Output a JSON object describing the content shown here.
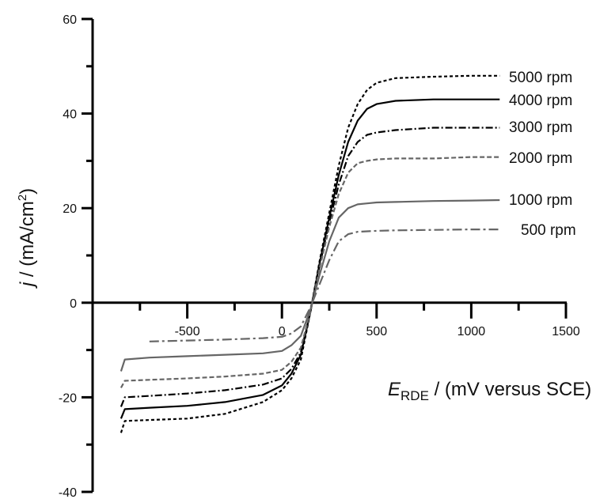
{
  "chart_data": {
    "type": "line",
    "title": "",
    "xlabel": {
      "main": "E",
      "sub": "RDE",
      "rest": " / (mV versus SCE)"
    },
    "ylabel": {
      "main": "j",
      "rest": " / (mA/cm",
      "sup": "2",
      "end": ")"
    },
    "xlim": [
      -1000,
      1500
    ],
    "ylim": [
      -40,
      60
    ],
    "xticks": [
      -500,
      0,
      500,
      1000,
      1500
    ],
    "xtick_labels": [
      "-500",
      "0",
      "500",
      "1000",
      "1500"
    ],
    "yticks": [
      -40,
      -20,
      0,
      20,
      40,
      60
    ],
    "ytick_labels": [
      "-40",
      "-20",
      "0",
      "20",
      "40",
      "60"
    ],
    "grid": false,
    "legend": "inline labels at right end of each curve",
    "x": [
      -850,
      -830,
      -700,
      -500,
      -300,
      -100,
      0,
      50,
      100,
      150,
      200,
      250,
      300,
      350,
      400,
      450,
      500,
      600,
      800,
      1000,
      1150
    ],
    "series": [
      {
        "name": "5000 rpm",
        "color": "#000000",
        "style": "dotted",
        "values": [
          -27.5,
          -25,
          -24.8,
          -24.5,
          -23.5,
          -21,
          -18.5,
          -16,
          -12,
          -2,
          9,
          19,
          29,
          37,
          42,
          45,
          46.5,
          47.5,
          47.8,
          48,
          48
        ]
      },
      {
        "name": "4000 rpm",
        "color": "#000000",
        "style": "solid",
        "values": [
          -24.5,
          -22.5,
          -22.2,
          -21.8,
          -21,
          -19.5,
          -17.5,
          -15,
          -11,
          -2,
          8.5,
          18,
          27,
          34,
          38.5,
          41,
          42,
          42.7,
          43,
          43,
          43
        ]
      },
      {
        "name": "3000 rpm",
        "color": "#000000",
        "style": "dash-dot",
        "values": [
          -22,
          -20,
          -19.7,
          -19.2,
          -18.5,
          -17.3,
          -16,
          -14,
          -10.5,
          -2,
          8,
          17,
          25,
          31,
          34,
          35.5,
          36,
          36.5,
          37,
          37,
          37
        ]
      },
      {
        "name": "2000 rpm",
        "color": "#666666",
        "style": "dashed",
        "values": [
          -18,
          -16.5,
          -16.3,
          -16,
          -15.6,
          -15,
          -14.2,
          -12.5,
          -9.5,
          -2,
          7.5,
          16,
          23,
          27.5,
          29.5,
          30,
          30.3,
          30.5,
          30.5,
          30.8,
          30.8
        ]
      },
      {
        "name": "1000 rpm",
        "color": "#666666",
        "style": "solid",
        "values": [
          -14.5,
          -12,
          -11.6,
          -11.3,
          -11,
          -10.7,
          -10.2,
          -9,
          -7,
          -1.5,
          6,
          13,
          18,
          20,
          20.8,
          21,
          21.2,
          21.3,
          21.5,
          21.6,
          21.7
        ]
      },
      {
        "name": "500 rpm",
        "color": "#666666",
        "style": "long-dash-dot",
        "values": [
          null,
          null,
          -8.2,
          -8,
          -7.8,
          -7.5,
          -7.2,
          -6.5,
          -5,
          -1,
          4,
          9,
          13,
          14.5,
          15,
          15.1,
          15.2,
          15.3,
          15.4,
          15.5,
          15.5
        ]
      }
    ]
  }
}
